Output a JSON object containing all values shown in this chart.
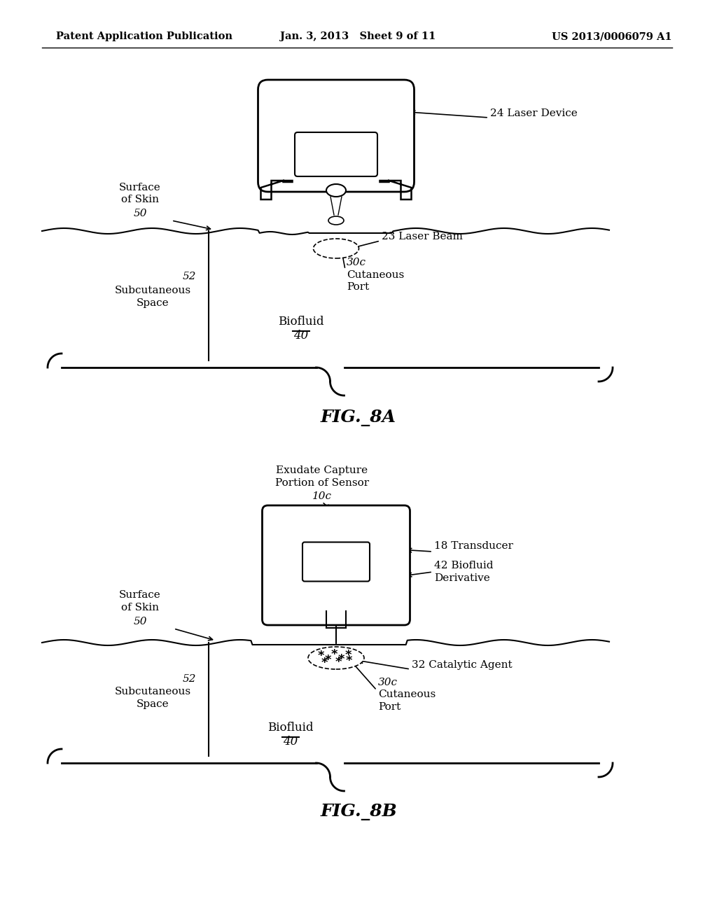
{
  "bg_color": "#ffffff",
  "page_width": 10.24,
  "page_height": 13.2,
  "header_left": "Patent Application Publication",
  "header_center": "Jan. 3, 2013   Sheet 9 of 11",
  "header_right": "US 2013/0006079 A1",
  "fig8a_label": "FIG._8A",
  "fig8b_label": "FIG._8B"
}
